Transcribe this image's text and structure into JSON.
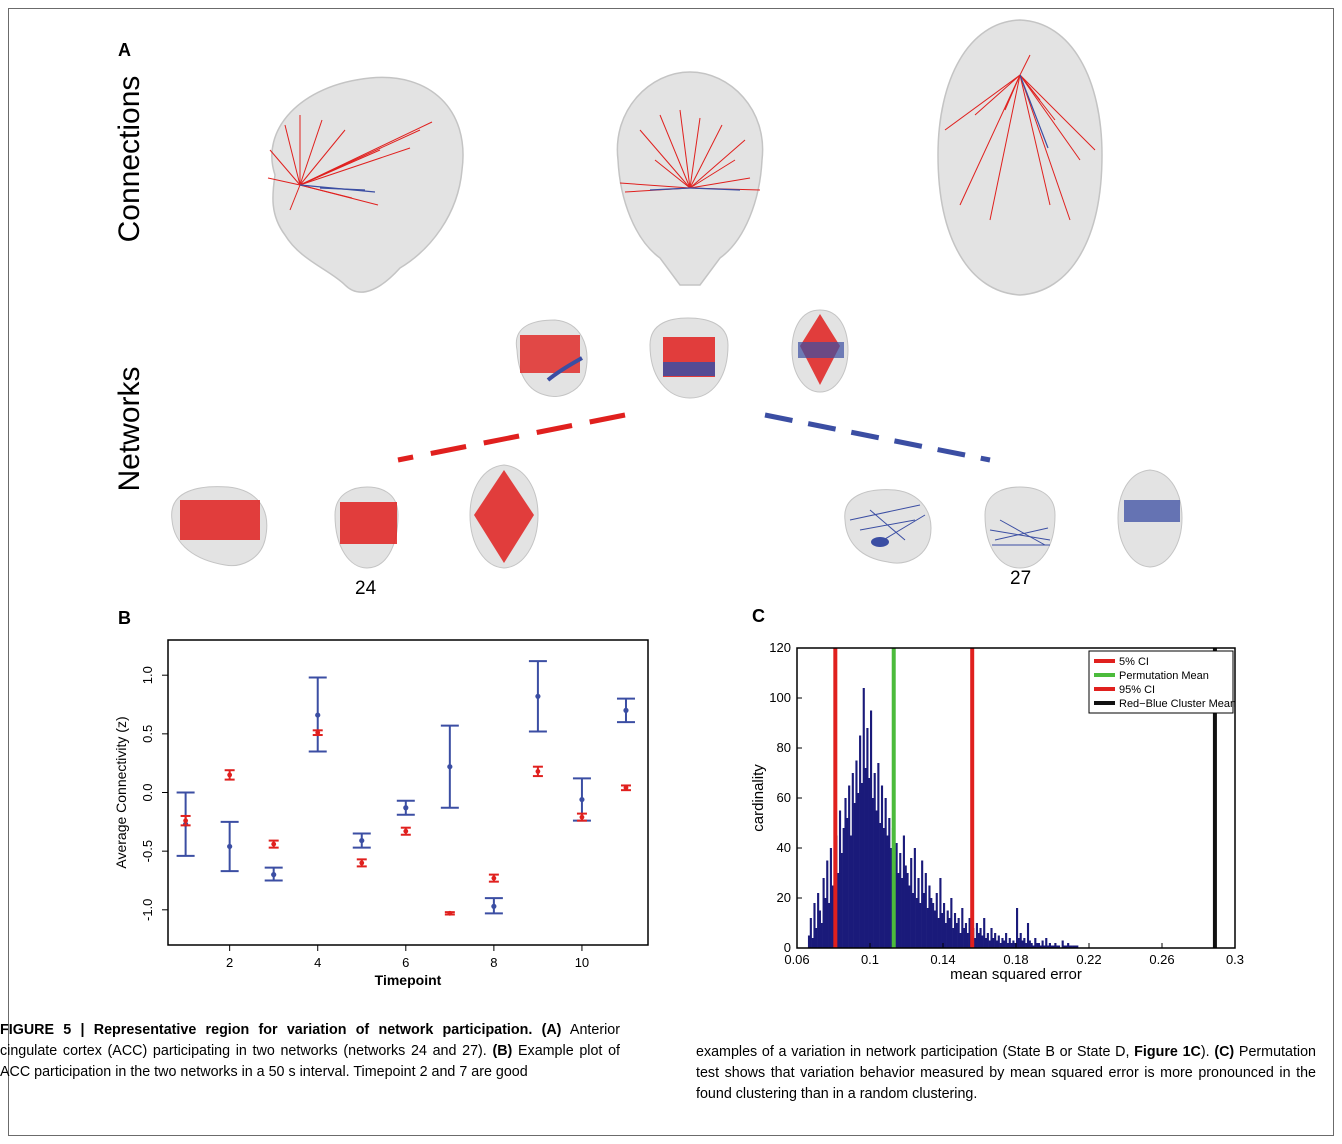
{
  "panel_labels": {
    "a": "A",
    "b": "B",
    "c": "C"
  },
  "panel_a": {
    "row_connections": "Connections",
    "row_networks": "Networks",
    "network_left_number": "24",
    "network_right_number": "27"
  },
  "colors": {
    "red": "#e0201e",
    "blue": "#3b4ea3",
    "navy": "#1a1a7a",
    "green": "#4cbb3c",
    "black": "#111111",
    "brain": "#d9d9d9"
  },
  "caption": {
    "head": "FIGURE 5 | Representative region for variation of network participation.",
    "p1_a": "(A)",
    "p1_b": " Anterior cingulate cortex (ACC) participating in two networks (networks 24 and 27). ",
    "p1_c": "(B)",
    "p1_d": " Example plot of ACC participation in the two networks in a 50 s interval. Timepoint 2 and 7 are good",
    "p2_a": "examples of a variation in network participation (State B or State D, ",
    "p2_b": "Figure 1C",
    "p2_c": "). ",
    "p2_d": "(C)",
    "p2_e": " Permutation test shows that variation behavior measured by mean squared error is more pronounced in the found clustering than in a random clustering."
  },
  "chart_data": [
    {
      "type": "scatter",
      "panel": "B",
      "xlabel": "Timepoint",
      "ylabel": "Average Connectivity (z)",
      "xlim": [
        0.6,
        11.5
      ],
      "ylim": [
        -1.3,
        1.3
      ],
      "xticks": [
        "2",
        "4",
        "6",
        "8",
        "10"
      ],
      "xtick_values": [
        2,
        4,
        6,
        8,
        10
      ],
      "yticks": [
        "-1.0",
        "-0.5",
        "0.0",
        "0.5",
        "1.0"
      ],
      "ytick_values": [
        -1.0,
        -0.5,
        0.0,
        0.5,
        1.0
      ],
      "series": [
        {
          "color": "#3b4ea3",
          "x": [
            1,
            2,
            3,
            4,
            5,
            6,
            7,
            8,
            9,
            10,
            11
          ],
          "y": [
            -0.27,
            -0.46,
            -0.7,
            0.66,
            -0.41,
            -0.13,
            0.22,
            -0.97,
            0.82,
            -0.06,
            0.7
          ],
          "lo": [
            -0.54,
            -0.67,
            -0.75,
            0.35,
            -0.47,
            -0.19,
            -0.13,
            -1.03,
            0.52,
            -0.24,
            0.6
          ],
          "hi": [
            0.0,
            -0.25,
            -0.64,
            0.98,
            -0.35,
            -0.07,
            0.57,
            -0.9,
            1.12,
            0.12,
            0.8
          ]
        },
        {
          "color": "#e0201e",
          "x": [
            1,
            2,
            3,
            4,
            5,
            6,
            7,
            8,
            9,
            10,
            11
          ],
          "y": [
            -0.24,
            0.15,
            -0.44,
            0.51,
            -0.6,
            -0.33,
            -1.03,
            -0.73,
            0.18,
            -0.21,
            0.04
          ],
          "lo": [
            -0.28,
            0.11,
            -0.47,
            0.49,
            -0.63,
            -0.36,
            -1.04,
            -0.76,
            0.14,
            -0.24,
            0.02
          ],
          "hi": [
            -0.2,
            0.19,
            -0.41,
            0.53,
            -0.57,
            -0.3,
            -1.02,
            -0.7,
            0.22,
            -0.18,
            0.06
          ]
        }
      ]
    },
    {
      "type": "bar",
      "panel": "C",
      "xlabel": "mean squared error",
      "ylabel": "cardinality",
      "xlim": [
        0.06,
        0.3
      ],
      "ylim": [
        0,
        120
      ],
      "xticks": [
        "0.06",
        "0.1",
        "0.14",
        "0.18",
        "0.22",
        "0.26",
        "0.3"
      ],
      "xtick_values": [
        0.06,
        0.1,
        0.14,
        0.18,
        0.22,
        0.26,
        0.3
      ],
      "yticks": [
        "0",
        "20",
        "40",
        "60",
        "80",
        "100",
        "120"
      ],
      "ytick_values": [
        0,
        20,
        40,
        60,
        80,
        100,
        120
      ],
      "histogram_color": "#1a1a7a",
      "histogram_bin_start": 0.066,
      "histogram_bin_width": 0.001,
      "histogram_counts": [
        5,
        12,
        4,
        18,
        8,
        22,
        15,
        10,
        28,
        20,
        35,
        18,
        40,
        25,
        33,
        45,
        30,
        55,
        38,
        48,
        60,
        52,
        65,
        45,
        70,
        58,
        75,
        62,
        85,
        66,
        104,
        72,
        88,
        68,
        95,
        60,
        70,
        55,
        74,
        50,
        65,
        48,
        60,
        45,
        52,
        40,
        48,
        35,
        42,
        30,
        38,
        28,
        45,
        33,
        30,
        25,
        36,
        22,
        40,
        20,
        28,
        18,
        35,
        22,
        30,
        16,
        25,
        20,
        18,
        15,
        22,
        12,
        28,
        14,
        18,
        10,
        15,
        12,
        20,
        8,
        14,
        10,
        12,
        6,
        16,
        8,
        10,
        6,
        12,
        5,
        8,
        4,
        10,
        6,
        8,
        5,
        12,
        4,
        6,
        3,
        8,
        4,
        6,
        3,
        5,
        2,
        4,
        3,
        6,
        2,
        4,
        2,
        3,
        2,
        16,
        4,
        6,
        3,
        4,
        2,
        10,
        3,
        2,
        1,
        4,
        2,
        2,
        1,
        3,
        1,
        4,
        1,
        2,
        1,
        1,
        2,
        1,
        1,
        0,
        3,
        1,
        1,
        2,
        1,
        1,
        1,
        1,
        1,
        0,
        0,
        0,
        0,
        0,
        0,
        0,
        0,
        0,
        0,
        0,
        0
      ],
      "vlines": [
        {
          "name": "5% CI",
          "x": 0.081,
          "color": "#e0201e"
        },
        {
          "name": "Permutation Mean",
          "x": 0.113,
          "color": "#4cbb3c"
        },
        {
          "name": "95% CI",
          "x": 0.156,
          "color": "#e0201e"
        },
        {
          "name": "Red−Blue Cluster Mean",
          "x": 0.289,
          "color": "#111111"
        }
      ],
      "legend_position": "top-right"
    }
  ]
}
